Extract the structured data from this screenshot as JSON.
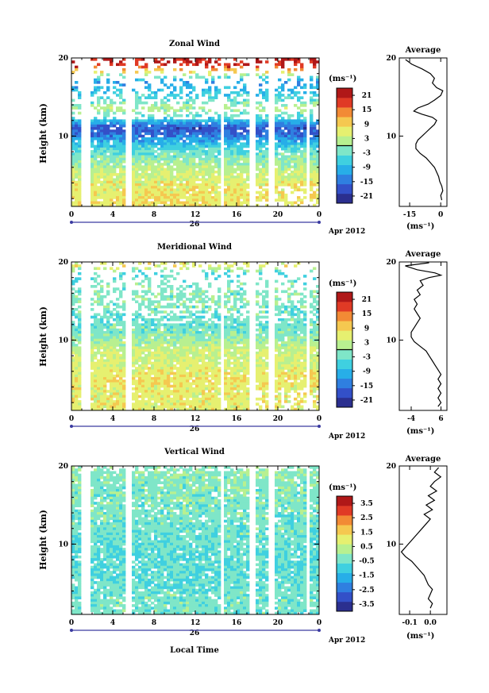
{
  "colors": {
    "colorscale": [
      "#2b2f8f",
      "#3350c8",
      "#2f7fe0",
      "#27aee8",
      "#3fd0e0",
      "#7fe6c8",
      "#b8f090",
      "#e6f070",
      "#f5c850",
      "#f28a35",
      "#e03a25",
      "#b01818"
    ],
    "contour": "#000000"
  },
  "shared": {
    "x_ticks": [
      "0",
      "4",
      "8",
      "12",
      "16",
      "20",
      "0"
    ],
    "date_label": "26",
    "month_label": "Apr 2012",
    "y_ticks": [
      "20",
      "10"
    ],
    "ylabel": "Height (km)",
    "xlabel": "Local Time",
    "avg_title": "Average",
    "avg_unit": "(ms⁻¹)",
    "cbar_unit": "(ms⁻¹)"
  },
  "panels": [
    {
      "title": "Zonal Wind",
      "cbar_ticks": [
        "21",
        "15",
        "9",
        "3",
        "-3",
        "-9",
        "-15",
        "-21"
      ],
      "avg_x_ticks": [
        "-15",
        "0"
      ]
    },
    {
      "title": "Meridional Wind",
      "cbar_ticks": [
        "21",
        "15",
        "9",
        "3",
        "-3",
        "-9",
        "-15",
        "-21"
      ],
      "avg_x_ticks": [
        "-4",
        "6"
      ]
    },
    {
      "title": "Vertical Wind",
      "cbar_ticks": [
        "3.5",
        "2.5",
        "1.5",
        "0.5",
        "-0.5",
        "-1.5",
        "-2.5",
        "-3.5"
      ],
      "avg_x_ticks": [
        "-0.1",
        "0.0"
      ]
    }
  ],
  "chart_data": [
    {
      "type": "heatmap",
      "title": "Zonal Wind",
      "xlabel": "",
      "ylabel": "Height (km)",
      "xlim_hours": [
        0,
        24
      ],
      "ylim_km": [
        1,
        20
      ],
      "x_unit": "local time (h), 26 Apr 2012",
      "color_range": [
        -24,
        24
      ],
      "color_unit": "ms⁻¹",
      "profile": [
        {
          "z": 19.0,
          "v": 20
        },
        {
          "z": 17.0,
          "v": -12
        },
        {
          "z": 15.0,
          "v": -5
        },
        {
          "z": 13.5,
          "v": 2
        },
        {
          "z": 12.0,
          "v": -8
        },
        {
          "z": 11.0,
          "v": -18
        },
        {
          "z": 10.0,
          "v": -14
        },
        {
          "z": 9.0,
          "v": -8
        },
        {
          "z": 8.0,
          "v": -3
        },
        {
          "z": 6.0,
          "v": 2
        },
        {
          "z": 4.0,
          "v": 6
        },
        {
          "z": 2.0,
          "v": 7
        }
      ],
      "average": {
        "xlim": [
          -20,
          3
        ],
        "points": [
          [
            -17,
            19.8
          ],
          [
            -14,
            19.2
          ],
          [
            -9,
            18.6
          ],
          [
            -5,
            18.0
          ],
          [
            -3,
            17.4
          ],
          [
            -4,
            16.8
          ],
          [
            -2,
            16.2
          ],
          [
            1,
            15.8
          ],
          [
            0,
            15.2
          ],
          [
            -3,
            14.6
          ],
          [
            -6,
            14.1
          ],
          [
            -11,
            13.6
          ],
          [
            -13,
            13.2
          ],
          [
            -9,
            12.8
          ],
          [
            -4,
            12.4
          ],
          [
            -2,
            12.0
          ],
          [
            -3,
            11.5
          ],
          [
            -5,
            11.0
          ],
          [
            -7,
            10.5
          ],
          [
            -9,
            10.0
          ],
          [
            -11,
            9.5
          ],
          [
            -12,
            9.0
          ],
          [
            -12,
            8.4
          ],
          [
            -10,
            7.8
          ],
          [
            -7,
            7.2
          ],
          [
            -5,
            6.6
          ],
          [
            -3,
            6.0
          ],
          [
            -2,
            5.4
          ],
          [
            -1,
            4.8
          ],
          [
            -0.5,
            4.2
          ],
          [
            0.5,
            3.6
          ],
          [
            1,
            3.0
          ],
          [
            0,
            2.4
          ],
          [
            0.5,
            1.8
          ]
        ]
      }
    },
    {
      "type": "heatmap",
      "title": "Meridional Wind",
      "xlabel": "",
      "ylabel": "Height (km)",
      "xlim_hours": [
        0,
        24
      ],
      "ylim_km": [
        1,
        20
      ],
      "x_unit": "local time (h), 26 Apr 2012",
      "color_range": [
        -24,
        24
      ],
      "color_unit": "ms⁻¹",
      "profile": [
        {
          "z": 19.5,
          "v": 6
        },
        {
          "z": 18.5,
          "v": -6
        },
        {
          "z": 17.0,
          "v": -2
        },
        {
          "z": 15.0,
          "v": -1
        },
        {
          "z": 13.0,
          "v": -3
        },
        {
          "z": 11.0,
          "v": -2
        },
        {
          "z": 9.0,
          "v": 3
        },
        {
          "z": 7.0,
          "v": 5
        },
        {
          "z": 5.0,
          "v": 7
        },
        {
          "z": 3.0,
          "v": 6
        }
      ],
      "average": {
        "xlim": [
          -8,
          8
        ],
        "points": [
          [
            2,
            19.9
          ],
          [
            -6,
            19.5
          ],
          [
            -2,
            19.0
          ],
          [
            4,
            18.6
          ],
          [
            6,
            18.3
          ],
          [
            2,
            18.0
          ],
          [
            -1,
            17.6
          ],
          [
            0,
            17.0
          ],
          [
            -2,
            16.4
          ],
          [
            -1,
            15.8
          ],
          [
            -3,
            15.2
          ],
          [
            -2,
            14.6
          ],
          [
            -3,
            14.0
          ],
          [
            -2,
            13.4
          ],
          [
            -1,
            12.8
          ],
          [
            -2,
            12.2
          ],
          [
            -3,
            11.6
          ],
          [
            -4,
            11.0
          ],
          [
            -4,
            10.4
          ],
          [
            -3,
            9.8
          ],
          [
            -1,
            9.2
          ],
          [
            1,
            8.6
          ],
          [
            2,
            8.0
          ],
          [
            3,
            7.4
          ],
          [
            4,
            6.8
          ],
          [
            5,
            6.2
          ],
          [
            6,
            5.6
          ],
          [
            5,
            5.0
          ],
          [
            6,
            4.4
          ],
          [
            5,
            3.8
          ],
          [
            6,
            3.2
          ],
          [
            5,
            2.6
          ],
          [
            6,
            2.0
          ],
          [
            5,
            1.5
          ]
        ]
      }
    },
    {
      "type": "heatmap",
      "title": "Vertical Wind",
      "xlabel": "Local Time",
      "ylabel": "Height (km)",
      "xlim_hours": [
        0,
        24
      ],
      "ylim_km": [
        1,
        20
      ],
      "x_unit": "local time (h), 26 Apr 2012",
      "color_range": [
        -4,
        4
      ],
      "color_unit": "ms⁻¹",
      "profile": [
        {
          "z": 19.0,
          "v": -0.2
        },
        {
          "z": 16.0,
          "v": -0.3
        },
        {
          "z": 13.0,
          "v": -0.4
        },
        {
          "z": 10.0,
          "v": -0.5
        },
        {
          "z": 8.0,
          "v": -0.7
        },
        {
          "z": 6.0,
          "v": -0.6
        },
        {
          "z": 3.0,
          "v": -0.4
        }
      ],
      "average": {
        "xlim": [
          -0.15,
          0.08
        ],
        "points": [
          [
            0.04,
            19.8
          ],
          [
            0.02,
            19.2
          ],
          [
            0.05,
            18.6
          ],
          [
            0.02,
            18.0
          ],
          [
            0.0,
            17.4
          ],
          [
            0.03,
            16.8
          ],
          [
            -0.01,
            16.2
          ],
          [
            0.02,
            15.6
          ],
          [
            -0.02,
            15.0
          ],
          [
            0.01,
            14.4
          ],
          [
            -0.03,
            13.8
          ],
          [
            0.0,
            13.2
          ],
          [
            -0.02,
            12.6
          ],
          [
            -0.04,
            12.0
          ],
          [
            -0.06,
            11.4
          ],
          [
            -0.08,
            10.8
          ],
          [
            -0.1,
            10.2
          ],
          [
            -0.12,
            9.6
          ],
          [
            -0.14,
            9.0
          ],
          [
            -0.12,
            8.4
          ],
          [
            -0.09,
            7.8
          ],
          [
            -0.07,
            7.2
          ],
          [
            -0.05,
            6.6
          ],
          [
            -0.03,
            6.0
          ],
          [
            -0.02,
            5.4
          ],
          [
            -0.01,
            4.8
          ],
          [
            0.01,
            4.2
          ],
          [
            0.0,
            3.6
          ],
          [
            -0.01,
            3.0
          ],
          [
            0.01,
            2.4
          ],
          [
            0.0,
            1.8
          ]
        ]
      }
    }
  ]
}
